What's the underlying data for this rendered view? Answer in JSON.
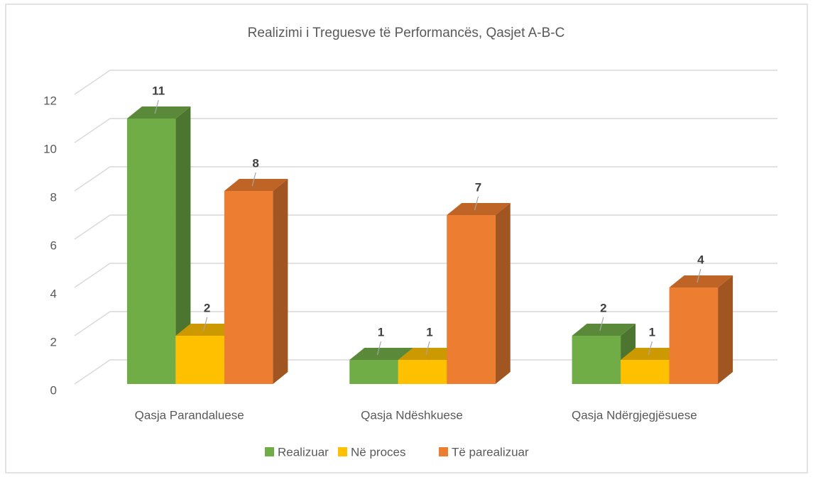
{
  "chart_data": {
    "type": "bar3d",
    "title": "Realizimi i Treguesve të Performancës, Qasjet A-B-C",
    "categories": [
      "Qasja Parandaluese",
      "Qasja Ndëshkuese",
      "Qasja Ndërgjegjësuese"
    ],
    "series": [
      {
        "name": "Realizuar",
        "color": "#70ad47",
        "values": [
          11,
          1,
          2
        ]
      },
      {
        "name": "Në proces",
        "color": "#ffc000",
        "values": [
          2,
          1,
          1
        ]
      },
      {
        "name": "Të parealizuar",
        "color": "#ed7d31",
        "values": [
          8,
          7,
          4
        ]
      }
    ],
    "ylim": [
      0,
      12
    ],
    "yticks": [
      0,
      2,
      4,
      6,
      8,
      10,
      12
    ],
    "grid": true,
    "legend": "bottom"
  }
}
